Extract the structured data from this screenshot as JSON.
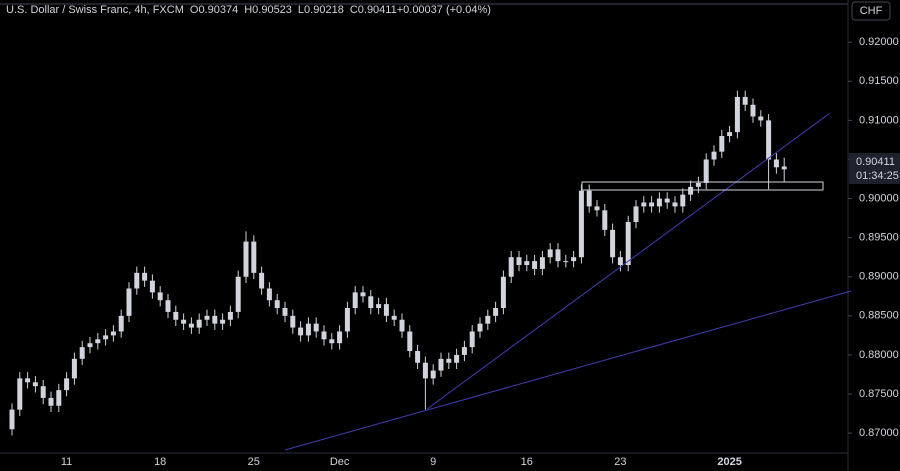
{
  "chart_data": {
    "type": "candlestick",
    "title": "U.S. Dollar / Swiss Franc, 4h, FXCM",
    "legend": [
      {
        "key": "O",
        "text": "0.90374"
      },
      {
        "key": "H",
        "text": "0.90523"
      },
      {
        "key": "L",
        "text": "0.90218"
      },
      {
        "key": "C",
        "text": "0.90411"
      },
      {
        "key": "",
        "text": "+0.00037 (+0.04%)"
      }
    ],
    "currency": "CHF",
    "last_price_label": "0.90411",
    "countdown": "01:34:25",
    "color": "#d1d4dc",
    "categories": [
      null,
      null,
      null,
      null,
      null,
      null,
      null,
      "11",
      null,
      null,
      null,
      null,
      null,
      null,
      null,
      null,
      null,
      null,
      null,
      "18",
      null,
      null,
      null,
      null,
      null,
      null,
      null,
      null,
      null,
      null,
      null,
      "25",
      null,
      null,
      null,
      null,
      null,
      null,
      null,
      null,
      null,
      null,
      "Dec",
      null,
      null,
      null,
      null,
      null,
      null,
      null,
      null,
      null,
      null,
      null,
      "9",
      null,
      null,
      null,
      null,
      null,
      null,
      null,
      null,
      null,
      null,
      null,
      "16",
      null,
      null,
      null,
      null,
      null,
      null,
      null,
      null,
      null,
      null,
      null,
      "23",
      null,
      null,
      null,
      null,
      null,
      null,
      null,
      null,
      null,
      null,
      null,
      null,
      null,
      "2025",
      null,
      null,
      null,
      null,
      null,
      null,
      null
    ],
    "open": [
      0.8705,
      0.873,
      0.877,
      0.8765,
      0.876,
      0.8745,
      0.8735,
      0.8755,
      0.877,
      0.8795,
      0.881,
      0.8815,
      0.882,
      0.8825,
      0.883,
      0.885,
      0.8885,
      0.8905,
      0.8895,
      0.888,
      0.887,
      0.8855,
      0.8845,
      0.884,
      0.8835,
      0.8845,
      0.885,
      0.884,
      0.8845,
      0.8855,
      0.89,
      0.8945,
      0.8905,
      0.8885,
      0.887,
      0.886,
      0.885,
      0.8835,
      0.8825,
      0.884,
      0.883,
      0.882,
      0.8815,
      0.883,
      0.886,
      0.888,
      0.8875,
      0.886,
      0.8865,
      0.885,
      0.8845,
      0.883,
      0.8805,
      0.879,
      0.877,
      0.878,
      0.8795,
      0.879,
      0.88,
      0.881,
      0.883,
      0.884,
      0.885,
      0.886,
      0.89,
      0.8925,
      0.8915,
      0.892,
      0.891,
      0.8925,
      0.8935,
      0.892,
      0.892,
      0.8925,
      0.901,
      0.899,
      0.8985,
      0.896,
      0.8925,
      0.8915,
      0.897,
      0.899,
      0.8995,
      0.899,
      0.9,
      0.8995,
      0.899,
      0.9005,
      0.9015,
      0.902,
      0.905,
      0.906,
      0.908,
      0.9085,
      0.913,
      0.912,
      0.9105,
      0.91,
      0.905,
      0.90374
    ],
    "high": [
      0.8738,
      0.8778,
      0.8778,
      0.8773,
      0.8768,
      0.8753,
      0.8763,
      0.8778,
      0.8803,
      0.8818,
      0.8823,
      0.8828,
      0.8833,
      0.8838,
      0.8858,
      0.8893,
      0.8913,
      0.8913,
      0.8903,
      0.8888,
      0.8878,
      0.8863,
      0.8853,
      0.8848,
      0.8853,
      0.8858,
      0.8858,
      0.8853,
      0.8863,
      0.8908,
      0.8958,
      0.8953,
      0.8913,
      0.8893,
      0.8878,
      0.8868,
      0.8858,
      0.8843,
      0.8848,
      0.8848,
      0.8838,
      0.8828,
      0.8838,
      0.8868,
      0.8888,
      0.8888,
      0.8883,
      0.8873,
      0.8873,
      0.8858,
      0.8853,
      0.8838,
      0.8813,
      0.8798,
      0.8788,
      0.8803,
      0.8803,
      0.8808,
      0.8818,
      0.8838,
      0.8848,
      0.8858,
      0.8868,
      0.8908,
      0.8933,
      0.8933,
      0.8928,
      0.8928,
      0.8933,
      0.8943,
      0.8943,
      0.8928,
      0.8933,
      0.9018,
      0.9018,
      0.8998,
      0.8993,
      0.8968,
      0.8933,
      0.8978,
      0.8998,
      0.9003,
      0.9003,
      0.9008,
      0.9008,
      0.9003,
      0.9013,
      0.9023,
      0.9028,
      0.9058,
      0.9068,
      0.9088,
      0.9093,
      0.9138,
      0.9138,
      0.9128,
      0.9113,
      0.9108,
      0.9058,
      0.90523
    ],
    "low": [
      0.8697,
      0.8722,
      0.8757,
      0.8752,
      0.8737,
      0.8727,
      0.8727,
      0.8747,
      0.8762,
      0.8787,
      0.8802,
      0.8807,
      0.8812,
      0.8817,
      0.8822,
      0.8842,
      0.8877,
      0.8887,
      0.8872,
      0.8862,
      0.8847,
      0.8837,
      0.8832,
      0.8827,
      0.8827,
      0.8837,
      0.8832,
      0.8832,
      0.8837,
      0.8847,
      0.8892,
      0.8897,
      0.8877,
      0.8862,
      0.8852,
      0.8842,
      0.8827,
      0.8817,
      0.8817,
      0.8822,
      0.8812,
      0.8807,
      0.8807,
      0.8822,
      0.8852,
      0.8867,
      0.8852,
      0.8852,
      0.8842,
      0.8837,
      0.8822,
      0.8797,
      0.8782,
      0.873,
      0.8762,
      0.8772,
      0.8782,
      0.8782,
      0.8792,
      0.8802,
      0.8822,
      0.8832,
      0.8842,
      0.8852,
      0.8892,
      0.8907,
      0.8907,
      0.8902,
      0.8902,
      0.8917,
      0.8912,
      0.8912,
      0.8912,
      0.8917,
      0.8982,
      0.8977,
      0.8952,
      0.8917,
      0.8907,
      0.8907,
      0.8962,
      0.8982,
      0.8982,
      0.8982,
      0.8987,
      0.8982,
      0.8982,
      0.8997,
      0.9007,
      0.9012,
      0.9042,
      0.9052,
      0.9072,
      0.9077,
      0.9112,
      0.9097,
      0.9092,
      0.9012,
      0.9032,
      0.90218
    ],
    "close": [
      0.873,
      0.877,
      0.8765,
      0.876,
      0.8745,
      0.8735,
      0.8755,
      0.877,
      0.8795,
      0.881,
      0.8815,
      0.882,
      0.8825,
      0.883,
      0.885,
      0.8885,
      0.8905,
      0.8895,
      0.888,
      0.887,
      0.8855,
      0.8845,
      0.884,
      0.8835,
      0.8845,
      0.885,
      0.884,
      0.8845,
      0.8855,
      0.89,
      0.8945,
      0.8905,
      0.8885,
      0.887,
      0.886,
      0.885,
      0.8835,
      0.8825,
      0.884,
      0.883,
      0.882,
      0.8815,
      0.883,
      0.886,
      0.888,
      0.8875,
      0.886,
      0.8865,
      0.885,
      0.8845,
      0.883,
      0.8805,
      0.879,
      0.877,
      0.878,
      0.8795,
      0.879,
      0.88,
      0.881,
      0.883,
      0.884,
      0.885,
      0.886,
      0.89,
      0.8925,
      0.8915,
      0.892,
      0.891,
      0.8925,
      0.8935,
      0.892,
      0.892,
      0.8925,
      0.901,
      0.899,
      0.8985,
      0.896,
      0.8925,
      0.8915,
      0.897,
      0.899,
      0.8995,
      0.899,
      0.9,
      0.8995,
      0.899,
      0.9005,
      0.9015,
      0.902,
      0.905,
      0.906,
      0.908,
      0.9085,
      0.913,
      0.912,
      0.9105,
      0.91,
      0.905,
      0.904,
      0.90411
    ],
    "ylim": [
      0.8672,
      0.9254
    ],
    "yticks": [
      {
        "value": 0.92,
        "label": "0.92000"
      },
      {
        "value": 0.915,
        "label": "0.91500"
      },
      {
        "value": 0.91,
        "label": "0.91000"
      },
      {
        "value": 0.905,
        "label": "0.90500"
      },
      {
        "value": 0.9,
        "label": "0.90000"
      },
      {
        "value": 0.895,
        "label": "0.89500"
      },
      {
        "value": 0.89,
        "label": "0.89000"
      },
      {
        "value": 0.885,
        "label": "0.88500"
      },
      {
        "value": 0.88,
        "label": "0.88000"
      },
      {
        "value": 0.875,
        "label": "0.87500"
      },
      {
        "value": 0.87,
        "label": "0.87000"
      }
    ],
    "grid": false
  }
}
